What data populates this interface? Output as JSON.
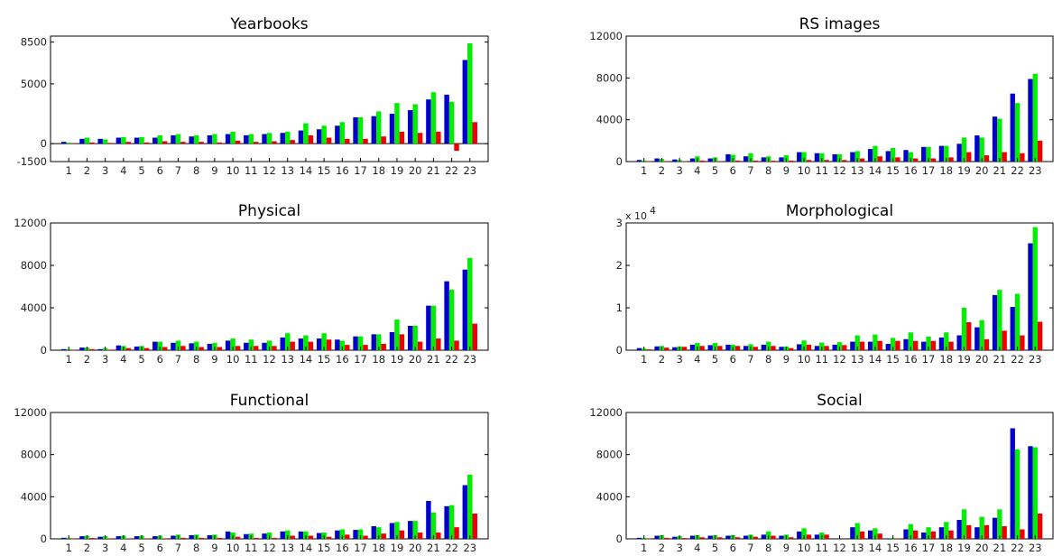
{
  "colors": [
    "#0000cc",
    "#00ee00",
    "#ee0000"
  ],
  "chart_data": [
    {
      "type": "bar",
      "title": "Yearbooks",
      "categories": [
        "1",
        "2",
        "3",
        "4",
        "5",
        "6",
        "7",
        "8",
        "9",
        "10",
        "11",
        "12",
        "13",
        "14",
        "15",
        "16",
        "17",
        "18",
        "19",
        "20",
        "21",
        "22",
        "23"
      ],
      "ylim": [
        -1500,
        9000
      ],
      "yticks": [
        -1500,
        0,
        5000,
        8500
      ],
      "ytick_labels": [
        "-1500",
        "0",
        "5000",
        "8500"
      ],
      "scale_label": "",
      "series": [
        {
          "values": [
            150,
            400,
            400,
            500,
            500,
            500,
            700,
            600,
            700,
            800,
            700,
            800,
            900,
            1100,
            1200,
            1500,
            2200,
            2300,
            2500,
            2800,
            3700,
            4100,
            7000
          ]
        },
        {
          "values": [
            80,
            500,
            350,
            550,
            550,
            700,
            800,
            700,
            800,
            1000,
            800,
            900,
            1000,
            1700,
            1500,
            1800,
            2200,
            2700,
            3400,
            3300,
            4300,
            3500,
            8400
          ]
        },
        {
          "values": [
            30,
            100,
            60,
            150,
            100,
            200,
            150,
            150,
            100,
            250,
            150,
            200,
            300,
            700,
            500,
            400,
            400,
            600,
            1000,
            900,
            1000,
            -600,
            1800
          ]
        }
      ]
    },
    {
      "type": "bar",
      "title": "RS images",
      "categories": [
        "1",
        "2",
        "3",
        "4",
        "5",
        "6",
        "7",
        "8",
        "9",
        "10",
        "11",
        "12",
        "13",
        "14",
        "15",
        "16",
        "17",
        "18",
        "19",
        "20",
        "21",
        "22",
        "23"
      ],
      "ylim": [
        0,
        12000
      ],
      "yticks": [
        0,
        4000,
        8000,
        12000
      ],
      "ytick_labels": [
        "0",
        "4000",
        "8000",
        "12000"
      ],
      "scale_label": "",
      "series": [
        {
          "values": [
            150,
            300,
            200,
            300,
            300,
            700,
            500,
            400,
            400,
            900,
            800,
            700,
            900,
            1200,
            1000,
            1100,
            1400,
            1500,
            1700,
            2500,
            4300,
            6500,
            7900
          ]
        },
        {
          "values": [
            100,
            250,
            150,
            500,
            400,
            650,
            800,
            500,
            600,
            900,
            800,
            700,
            1000,
            1500,
            1300,
            900,
            1400,
            1500,
            2300,
            2300,
            4100,
            5600,
            8400
          ]
        },
        {
          "values": [
            20,
            50,
            30,
            100,
            50,
            100,
            100,
            80,
            100,
            150,
            150,
            150,
            300,
            500,
            400,
            300,
            300,
            400,
            900,
            600,
            900,
            800,
            2000
          ]
        }
      ]
    },
    {
      "type": "bar",
      "title": "Physical",
      "categories": [
        "1",
        "2",
        "3",
        "4",
        "5",
        "6",
        "7",
        "8",
        "9",
        "10",
        "11",
        "12",
        "13",
        "14",
        "15",
        "16",
        "17",
        "18",
        "19",
        "20",
        "21",
        "22",
        "23"
      ],
      "ylim": [
        0,
        12000
      ],
      "yticks": [
        0,
        4000,
        8000,
        12000
      ],
      "ytick_labels": [
        "0",
        "4000",
        "8000",
        "12000"
      ],
      "scale_label": "",
      "series": [
        {
          "values": [
            100,
            250,
            100,
            450,
            350,
            800,
            700,
            650,
            600,
            900,
            700,
            700,
            1200,
            1100,
            1100,
            1000,
            1300,
            1500,
            1700,
            2300,
            4200,
            6500,
            7600
          ]
        },
        {
          "values": [
            100,
            250,
            200,
            400,
            400,
            800,
            900,
            800,
            700,
            1100,
            1000,
            900,
            1600,
            1400,
            1600,
            900,
            1300,
            1500,
            2900,
            2300,
            4200,
            5700,
            8700
          ]
        },
        {
          "values": [
            20,
            100,
            50,
            200,
            200,
            300,
            400,
            300,
            300,
            400,
            400,
            400,
            800,
            800,
            1000,
            500,
            500,
            600,
            1500,
            800,
            1100,
            900,
            2500
          ]
        }
      ]
    },
    {
      "type": "bar",
      "title": "Morphological",
      "categories": [
        "1",
        "2",
        "3",
        "4",
        "5",
        "6",
        "7",
        "8",
        "9",
        "10",
        "11",
        "12",
        "13",
        "14",
        "15",
        "16",
        "17",
        "18",
        "19",
        "20",
        "21",
        "22",
        "23"
      ],
      "ylim": [
        0,
        3
      ],
      "yticks": [
        0,
        1,
        2,
        3
      ],
      "ytick_labels": [
        "0",
        "1",
        "2",
        "3"
      ],
      "scale_label": "x 10",
      "scale_exponent": "4",
      "series": [
        {
          "values": [
            0.05,
            0.09,
            0.07,
            0.13,
            0.12,
            0.13,
            0.1,
            0.13,
            0.08,
            0.14,
            0.1,
            0.13,
            0.2,
            0.2,
            0.15,
            0.26,
            0.2,
            0.3,
            0.35,
            0.54,
            1.3,
            1.02,
            2.52
          ]
        },
        {
          "values": [
            0.04,
            0.1,
            0.09,
            0.17,
            0.17,
            0.13,
            0.14,
            0.2,
            0.09,
            0.23,
            0.18,
            0.19,
            0.35,
            0.37,
            0.29,
            0.42,
            0.32,
            0.42,
            1.0,
            0.71,
            1.42,
            1.33,
            2.9
          ]
        },
        {
          "values": [
            0.02,
            0.06,
            0.08,
            0.1,
            0.1,
            0.1,
            0.08,
            0.1,
            0.05,
            0.13,
            0.1,
            0.12,
            0.2,
            0.22,
            0.22,
            0.22,
            0.22,
            0.2,
            0.66,
            0.26,
            0.46,
            0.35,
            0.67
          ]
        }
      ]
    },
    {
      "type": "bar",
      "title": "Functional",
      "categories": [
        "1",
        "2",
        "3",
        "4",
        "5",
        "6",
        "7",
        "8",
        "9",
        "10",
        "11",
        "12",
        "13",
        "14",
        "15",
        "16",
        "17",
        "18",
        "19",
        "20",
        "21",
        "22",
        "23"
      ],
      "ylim": [
        0,
        12000
      ],
      "yticks": [
        0,
        4000,
        8000,
        12000
      ],
      "ytick_labels": [
        "0",
        "4000",
        "8000",
        "12000"
      ],
      "scale_label": "",
      "series": [
        {
          "values": [
            100,
            250,
            200,
            250,
            250,
            250,
            300,
            350,
            350,
            700,
            450,
            500,
            700,
            700,
            550,
            800,
            850,
            1200,
            1500,
            1700,
            3600,
            3100,
            5100
          ]
        },
        {
          "values": [
            100,
            300,
            250,
            300,
            300,
            300,
            400,
            400,
            400,
            600,
            500,
            600,
            800,
            700,
            600,
            900,
            900,
            1100,
            1600,
            1700,
            2500,
            3200,
            6100
          ]
        },
        {
          "values": [
            20,
            80,
            50,
            50,
            50,
            50,
            100,
            100,
            100,
            200,
            100,
            100,
            300,
            300,
            200,
            400,
            300,
            500,
            800,
            600,
            600,
            1100,
            2400
          ]
        }
      ]
    },
    {
      "type": "bar",
      "title": "Social",
      "categories": [
        "1",
        "2",
        "3",
        "4",
        "5",
        "6",
        "7",
        "8",
        "9",
        "10",
        "11",
        "12",
        "13",
        "14",
        "15",
        "16",
        "17",
        "18",
        "19",
        "20",
        "21",
        "22",
        "23"
      ],
      "ylim": [
        0,
        12000
      ],
      "yticks": [
        0,
        4000,
        8000,
        12000
      ],
      "ytick_labels": [
        "0",
        "4000",
        "8000",
        "12000"
      ],
      "scale_label": "",
      "series": [
        {
          "values": [
            100,
            300,
            200,
            300,
            300,
            300,
            300,
            400,
            300,
            700,
            400,
            0,
            1100,
            800,
            50,
            900,
            600,
            1100,
            1800,
            1100,
            2000,
            10500,
            8800
          ]
        },
        {
          "values": [
            100,
            350,
            250,
            350,
            350,
            350,
            400,
            700,
            400,
            1000,
            600,
            0,
            1500,
            1000,
            100,
            1400,
            1100,
            1600,
            2800,
            2100,
            2800,
            8500,
            8700
          ]
        },
        {
          "values": [
            20,
            100,
            80,
            150,
            150,
            150,
            200,
            300,
            150,
            400,
            400,
            0,
            700,
            500,
            50,
            800,
            700,
            800,
            1300,
            1300,
            1200,
            900,
            2400
          ]
        }
      ]
    }
  ]
}
